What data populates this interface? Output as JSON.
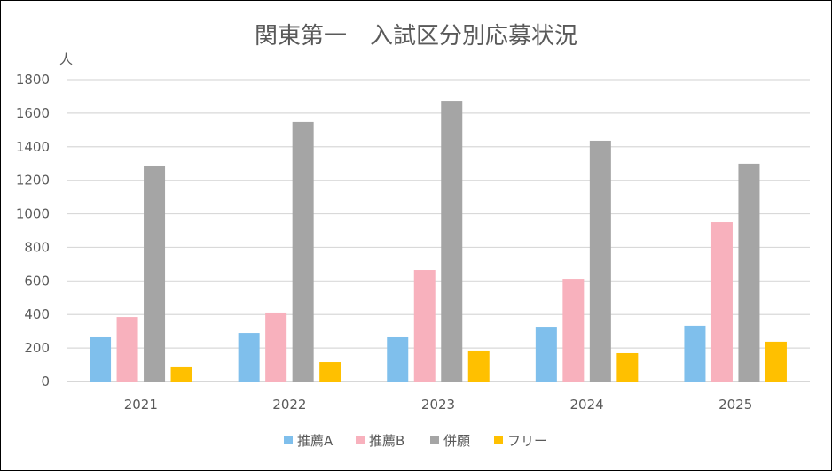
{
  "chart_data": {
    "type": "bar",
    "title": "関東第一　入試区分別応募状況",
    "ylabel": "人",
    "xlabel": "",
    "categories": [
      "2021",
      "2022",
      "2023",
      "2024",
      "2025"
    ],
    "ylim": [
      0,
      1800
    ],
    "yticks": [
      "0",
      "200",
      "400",
      "600",
      "800",
      "1000",
      "1200",
      "1400",
      "1600",
      "1800"
    ],
    "grid": true,
    "legend_position": "bottom",
    "series": [
      {
        "name": "推薦A",
        "color": "#7FBFEC",
        "values": [
          264,
          290,
          264,
          327,
          333
        ]
      },
      {
        "name": "推薦B",
        "color": "#F8B1BD",
        "values": [
          385,
          412,
          665,
          612,
          950
        ]
      },
      {
        "name": "併願",
        "color": "#A5A5A5",
        "values": [
          1288,
          1547,
          1673,
          1436,
          1299
        ]
      },
      {
        "name": "フリー",
        "color": "#FFC000",
        "values": [
          90,
          116,
          185,
          169,
          238
        ]
      }
    ]
  }
}
